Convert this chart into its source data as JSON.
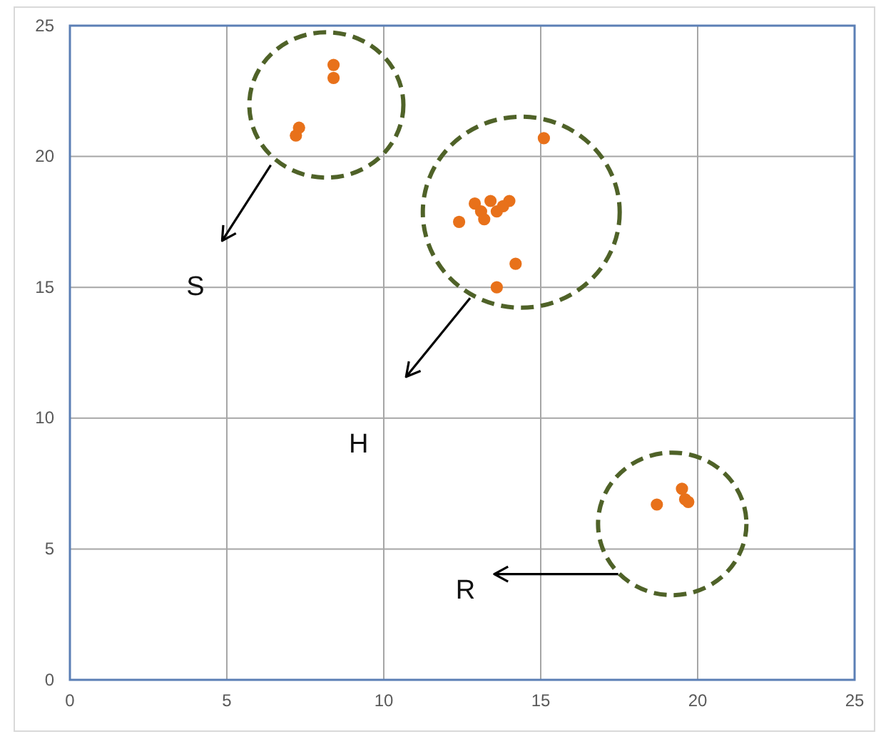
{
  "chart_data": {
    "type": "scatter",
    "color": "#e8711a",
    "marker": "circle",
    "grid": true,
    "x": [
      8.4,
      8.4,
      7.3,
      7.2,
      15.1,
      12.9,
      13.4,
      14.0,
      13.1,
      13.6,
      13.2,
      13.8,
      12.4,
      14.2,
      13.6,
      18.7,
      19.5,
      19.6,
      19.7
    ],
    "values": [
      23.5,
      23.0,
      21.1,
      20.8,
      20.7,
      18.2,
      18.3,
      18.3,
      17.9,
      17.9,
      17.6,
      18.1,
      17.5,
      15.9,
      15.0,
      6.7,
      7.3,
      6.9,
      6.8
    ],
    "xlim": [
      0,
      25
    ],
    "ylim": [
      0,
      25
    ],
    "xticks": [
      0,
      5,
      10,
      15,
      20,
      25
    ],
    "yticks": [
      0,
      5,
      10,
      15,
      20,
      25
    ],
    "annotations": [
      "S",
      "H",
      "R"
    ]
  }
}
